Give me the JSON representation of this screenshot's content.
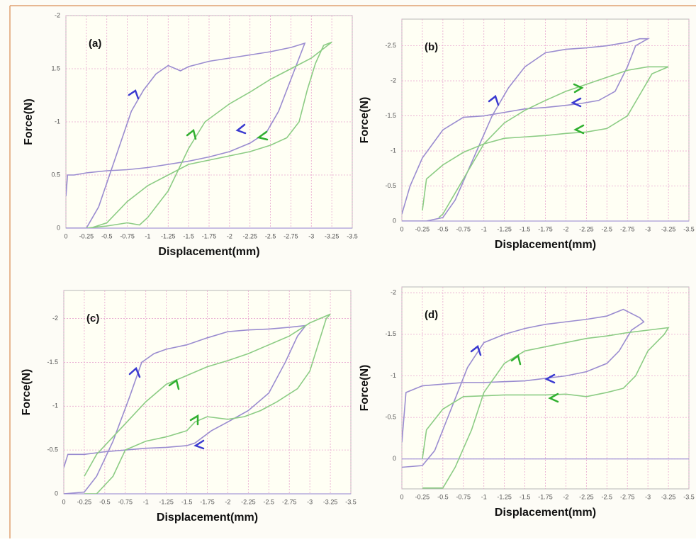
{
  "chart_data": [
    {
      "type": "line",
      "annotation": "(a)",
      "xlabel": "Displacement(mm)",
      "ylabel": "Force(N)",
      "grid": true,
      "xlim": [
        0,
        -3.5
      ],
      "xticks": [
        0,
        -0.25,
        -0.5,
        -0.75,
        -1,
        -1.25,
        -1.5,
        -1.75,
        -2,
        -2.25,
        -2.5,
        -2.75,
        -3,
        -3.25,
        -3.5
      ],
      "ylim": [
        0,
        -2
      ],
      "yticks": [
        0,
        {
          "value": -0.5,
          "label": "0.5"
        },
        -1,
        {
          "value": -1.5,
          "label": "1.5"
        },
        -2
      ],
      "series": [
        {
          "color": "#9a8cd0",
          "x": [
            0,
            -0.25,
            -0.4,
            -0.6,
            -0.8,
            -0.95,
            -1.1,
            -1.25,
            -1.4,
            -1.5,
            -1.75,
            -2,
            -2.25,
            -2.5,
            -2.75,
            -2.92,
            -2.85,
            -2.75,
            -2.6,
            -2.45,
            -2.25,
            -2,
            -1.75,
            -1.5,
            -1.25,
            -1,
            -0.75,
            -0.5,
            -0.25,
            -0.1,
            -0.02,
            0
          ],
          "values": [
            0,
            0,
            -0.2,
            -0.65,
            -1.1,
            -1.3,
            -1.45,
            -1.53,
            -1.48,
            -1.52,
            -1.57,
            -1.6,
            -1.63,
            -1.66,
            -1.7,
            -1.74,
            -1.6,
            -1.4,
            -1.1,
            -0.9,
            -0.8,
            -0.72,
            -0.67,
            -0.63,
            -0.6,
            -0.57,
            -0.55,
            -0.54,
            -0.52,
            -0.5,
            -0.5,
            -0.3
          ]
        },
        {
          "color": "#8ccc84",
          "x": [
            -0.25,
            -0.5,
            -0.75,
            -0.9,
            -1,
            -1.25,
            -1.5,
            -1.7,
            -2,
            -2.25,
            -2.5,
            -2.75,
            -3,
            -3.2,
            -3.25,
            -3.15,
            -3.05,
            -2.95,
            -2.85,
            -2.7,
            -2.5,
            -2.25,
            -2,
            -1.75,
            -1.5,
            -1.25,
            -1,
            -0.75,
            -0.5,
            -0.3
          ],
          "values": [
            0,
            -0.02,
            -0.05,
            -0.03,
            -0.1,
            -0.35,
            -0.75,
            -1,
            -1.17,
            -1.28,
            -1.4,
            -1.5,
            -1.6,
            -1.72,
            -1.75,
            -1.72,
            -1.55,
            -1.3,
            -1,
            -0.85,
            -0.78,
            -0.72,
            -0.68,
            -0.64,
            -0.6,
            -0.5,
            -0.4,
            -0.25,
            -0.05,
            0
          ]
        }
      ]
    },
    {
      "type": "line",
      "annotation": "(b)",
      "xlabel": "Displacement(mm)",
      "ylabel": "Force(N)",
      "grid": true,
      "xlim": [
        0,
        -3.5
      ],
      "xticks": [
        0,
        -0.25,
        -0.5,
        -0.75,
        -1,
        -1.25,
        -1.5,
        -1.75,
        -2,
        -2.25,
        -2.5,
        -2.75,
        -3,
        -3.25,
        -3.5
      ],
      "ylim": [
        0,
        -2.88
      ],
      "yticks": [
        0,
        -0.5,
        -1,
        -1.5,
        -2,
        -2.5
      ],
      "series": [
        {
          "color": "#9a8cd0",
          "x": [
            0,
            -0.3,
            -0.5,
            -0.65,
            -0.8,
            -0.95,
            -1.1,
            -1.3,
            -1.5,
            -1.75,
            -2,
            -2.25,
            -2.5,
            -2.75,
            -2.9,
            -3,
            -2.85,
            -2.75,
            -2.6,
            -2.4,
            -2.2,
            -2,
            -1.75,
            -1.5,
            -1.25,
            -1,
            -0.75,
            -0.5,
            -0.25,
            -0.1,
            0
          ],
          "values": [
            0,
            0,
            -0.05,
            -0.3,
            -0.7,
            -1.1,
            -1.5,
            -1.9,
            -2.2,
            -2.4,
            -2.45,
            -2.47,
            -2.5,
            -2.55,
            -2.6,
            -2.6,
            -2.5,
            -2.2,
            -1.85,
            -1.72,
            -1.68,
            -1.65,
            -1.62,
            -1.6,
            -1.55,
            -1.5,
            -1.48,
            -1.3,
            -0.9,
            -0.5,
            -0.1
          ]
        },
        {
          "color": "#8ccc84",
          "x": [
            -0.45,
            -0.5,
            -0.75,
            -1,
            -1.25,
            -1.5,
            -1.75,
            -2,
            -2.25,
            -2.5,
            -2.75,
            -3,
            -3.25,
            -3.05,
            -2.9,
            -2.75,
            -2.5,
            -2.25,
            -2,
            -1.75,
            -1.5,
            -1.25,
            -1,
            -0.75,
            -0.5,
            -0.3,
            -0.25
          ],
          "values": [
            -0.05,
            -0.1,
            -0.6,
            -1.1,
            -1.4,
            -1.58,
            -1.72,
            -1.85,
            -1.95,
            -2.05,
            -2.15,
            -2.2,
            -2.2,
            -2.1,
            -1.8,
            -1.5,
            -1.32,
            -1.27,
            -1.25,
            -1.22,
            -1.2,
            -1.18,
            -1.1,
            -0.98,
            -0.8,
            -0.6,
            -0.15
          ]
        }
      ]
    },
    {
      "type": "line",
      "annotation": "(c)",
      "xlabel": "Displacement(mm)",
      "ylabel": "Force(N)",
      "grid": true,
      "xlim": [
        0,
        -3.5
      ],
      "xticks": [
        0,
        -0.25,
        -0.5,
        -0.75,
        -1,
        -1.25,
        -1.5,
        -1.75,
        -2,
        -2.25,
        -2.5,
        -2.75,
        -3,
        -3.25,
        -3.5
      ],
      "ylim": [
        0,
        -2.32
      ],
      "yticks": [
        0,
        -0.5,
        -1,
        -1.5,
        -2
      ],
      "series": [
        {
          "color": "#9a8cd0",
          "x": [
            0,
            -0.25,
            -0.4,
            -0.6,
            -0.8,
            -0.95,
            -1.1,
            -1.25,
            -1.5,
            -1.75,
            -2,
            -2.25,
            -2.5,
            -2.75,
            -2.95,
            -2.85,
            -2.7,
            -2.5,
            -2.25,
            -2,
            -1.8,
            -1.6,
            -1.5,
            -1.25,
            -1,
            -0.75,
            -0.5,
            -0.25,
            -0.05,
            0
          ],
          "values": [
            0,
            -0.02,
            -0.2,
            -0.6,
            -1.1,
            -1.5,
            -1.6,
            -1.65,
            -1.7,
            -1.78,
            -1.85,
            -1.87,
            -1.88,
            -1.9,
            -1.92,
            -1.8,
            -1.5,
            -1.15,
            -0.95,
            -0.82,
            -0.72,
            -0.58,
            -0.55,
            -0.53,
            -0.52,
            -0.5,
            -0.48,
            -0.45,
            -0.45,
            -0.3
          ]
        },
        {
          "color": "#8ccc84",
          "x": [
            -0.25,
            -0.4,
            -0.75,
            -1,
            -1.25,
            -1.5,
            -1.75,
            -2,
            -2.25,
            -2.5,
            -2.75,
            -3,
            -3.25,
            -3.2,
            -3.1,
            -3,
            -2.85,
            -2.6,
            -2.4,
            -2.2,
            -2,
            -1.75,
            -1.6,
            -1.5,
            -1.25,
            -1,
            -0.75,
            -0.6,
            -0.4,
            -0.25
          ],
          "values": [
            -0.2,
            -0.45,
            -0.8,
            -1.05,
            -1.25,
            -1.35,
            -1.45,
            -1.52,
            -1.6,
            -1.7,
            -1.8,
            -1.95,
            -2.05,
            -2,
            -1.7,
            -1.4,
            -1.2,
            -1.05,
            -0.95,
            -0.88,
            -0.85,
            -0.88,
            -0.82,
            -0.72,
            -0.65,
            -0.6,
            -0.5,
            -0.2,
            0,
            0
          ]
        }
      ]
    },
    {
      "type": "line",
      "annotation": "(d)",
      "xlabel": "Displacement(mm)",
      "ylabel": "Force(N)",
      "grid": true,
      "xlim": [
        0,
        -3.5
      ],
      "xticks": [
        0,
        -0.25,
        -0.5,
        -0.75,
        -1,
        -1.25,
        -1.5,
        -1.75,
        -2,
        -2.25,
        -2.5,
        -2.75,
        -3,
        -3.25,
        -3.5
      ],
      "ylim": [
        0.36,
        -2.07
      ],
      "yticks": [
        0,
        -0.5,
        -1,
        -1.5,
        -2
      ],
      "series": [
        {
          "color": "#9a8cd0",
          "x": [
            0,
            -0.25,
            -0.4,
            -0.6,
            -0.8,
            -1,
            -1.25,
            -1.5,
            -1.75,
            -2,
            -2.25,
            -2.5,
            -2.7,
            -2.9,
            -2.95,
            -2.8,
            -2.65,
            -2.5,
            -2.25,
            -2,
            -1.75,
            -1.5,
            -1.25,
            -1,
            -0.75,
            -0.5,
            -0.25,
            -0.05,
            0
          ],
          "values": [
            0.1,
            0.08,
            -0.1,
            -0.6,
            -1.1,
            -1.4,
            -1.5,
            -1.57,
            -1.62,
            -1.65,
            -1.68,
            -1.72,
            -1.8,
            -1.7,
            -1.65,
            -1.55,
            -1.3,
            -1.15,
            -1.05,
            -1,
            -0.97,
            -0.94,
            -0.93,
            -0.92,
            -0.92,
            -0.9,
            -0.88,
            -0.8,
            -0.2
          ]
        },
        {
          "color": "#8ccc84",
          "x": [
            -0.25,
            -0.5,
            -0.65,
            -0.85,
            -1,
            -1.25,
            -1.5,
            -1.75,
            -2,
            -2.25,
            -2.5,
            -2.75,
            -3,
            -3.25,
            -3.2,
            -3,
            -2.85,
            -2.7,
            -2.5,
            -2.25,
            -2,
            -1.75,
            -1.5,
            -1.25,
            -1,
            -0.75,
            -0.5,
            -0.3,
            -0.25
          ],
          "values": [
            0.35,
            0.35,
            0.1,
            -0.35,
            -0.8,
            -1.15,
            -1.3,
            -1.35,
            -1.4,
            -1.45,
            -1.48,
            -1.52,
            -1.55,
            -1.58,
            -1.5,
            -1.3,
            -1,
            -0.85,
            -0.8,
            -0.75,
            -0.78,
            -0.77,
            -0.77,
            -0.77,
            -0.76,
            -0.75,
            -0.6,
            -0.35,
            0
          ]
        }
      ]
    }
  ]
}
